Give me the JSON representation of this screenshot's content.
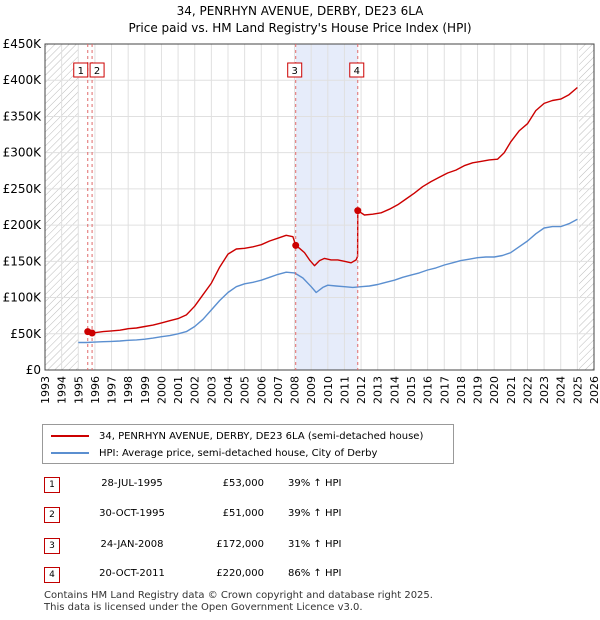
{
  "title_line1": "34, PENRHYN AVENUE, DERBY, DE23 6LA",
  "title_line2": "Price paid vs. HM Land Registry's House Price Index (HPI)",
  "colors": {
    "property": "#cc0000",
    "hpi": "#5b8fd0",
    "shade": "#e6ecfa",
    "marker_line": "#e06a6a",
    "grid": "#e0e0e0",
    "hatch": "#bbbbbb"
  },
  "chart_data": {
    "type": "line",
    "title": "Price paid vs. HM Land Registry's House Price Index (HPI)",
    "xlabel": "",
    "ylabel": "",
    "xlim": [
      1993,
      2026
    ],
    "ylim": [
      0,
      450000
    ],
    "y_ticks": [
      0,
      50000,
      100000,
      150000,
      200000,
      250000,
      300000,
      350000,
      400000,
      450000
    ],
    "y_tick_labels": [
      "£0",
      "£50K",
      "£100K",
      "£150K",
      "£200K",
      "£250K",
      "£300K",
      "£350K",
      "£400K",
      "£450K"
    ],
    "x_ticks": [
      1993,
      1994,
      1995,
      1996,
      1997,
      1998,
      1999,
      2000,
      2001,
      2002,
      2003,
      2004,
      2005,
      2006,
      2007,
      2008,
      2009,
      2010,
      2011,
      2012,
      2013,
      2014,
      2015,
      2016,
      2017,
      2018,
      2019,
      2020,
      2021,
      2022,
      2023,
      2024,
      2025,
      2026
    ],
    "x_tick_labels": [
      "1993",
      "1994",
      "1995",
      "1996",
      "1997",
      "1998",
      "1999",
      "2000",
      "2001",
      "2002",
      "2003",
      "2004",
      "2005",
      "2006",
      "2007",
      "2008",
      "2009",
      "2010",
      "2011",
      "2012",
      "2013",
      "2014",
      "2015",
      "2016",
      "2017",
      "2018",
      "2019",
      "2020",
      "2021",
      "2022",
      "2023",
      "2024",
      "2025",
      "2026"
    ],
    "hatched_ranges": [
      [
        1993,
        1995.0
      ],
      [
        2025.1,
        2026
      ]
    ],
    "shaded_range": [
      2008.07,
      2011.8
    ],
    "series": [
      {
        "name": "34, PENRHYN AVENUE, DERBY, DE23 6LA (semi-detached house)",
        "x": [
          1995.57,
          1995.83,
          1996.5,
          1997.0,
          1997.5,
          1998.0,
          1998.5,
          1999.0,
          1999.5,
          2000.0,
          2000.5,
          2001.0,
          2001.5,
          2002.0,
          2002.5,
          2003.0,
          2003.5,
          2004.0,
          2004.5,
          2005.0,
          2005.5,
          2006.0,
          2006.5,
          2007.0,
          2007.5,
          2007.9,
          2008.07,
          2008.3,
          2008.6,
          2008.9,
          2009.2,
          2009.5,
          2009.8,
          2010.2,
          2010.6,
          2011.0,
          2011.4,
          2011.7,
          2011.79,
          2011.8,
          2012.2,
          2012.7,
          2013.2,
          2013.7,
          2014.2,
          2014.7,
          2015.2,
          2015.7,
          2016.2,
          2016.7,
          2017.2,
          2017.7,
          2018.2,
          2018.7,
          2019.2,
          2019.7,
          2020.2,
          2020.6,
          2021.0,
          2021.5,
          2022.0,
          2022.5,
          2023.0,
          2023.5,
          2024.0,
          2024.5,
          2025.0
        ],
        "values": [
          53000,
          51000,
          53000,
          54000,
          55000,
          57000,
          58000,
          60000,
          62000,
          65000,
          68000,
          71000,
          76000,
          88000,
          104000,
          120000,
          142000,
          160000,
          167000,
          168000,
          170000,
          173000,
          178000,
          182000,
          186000,
          184000,
          172000,
          168000,
          162000,
          152000,
          144000,
          151000,
          154000,
          152000,
          152000,
          150000,
          148000,
          152000,
          157000,
          220000,
          214000,
          215000,
          217000,
          222000,
          228000,
          236000,
          244000,
          253000,
          260000,
          266000,
          272000,
          276000,
          282000,
          286000,
          288000,
          290000,
          291000,
          300000,
          315000,
          330000,
          340000,
          358000,
          368000,
          372000,
          374000,
          380000,
          390000
        ]
      },
      {
        "name": "HPI: Average price, semi-detached house, City of Derby",
        "x": [
          1995.0,
          1995.5,
          1996.0,
          1996.5,
          1997.0,
          1997.5,
          1998.0,
          1998.5,
          1999.0,
          1999.5,
          2000.0,
          2000.5,
          2001.0,
          2001.5,
          2002.0,
          2002.5,
          2003.0,
          2003.5,
          2004.0,
          2004.5,
          2005.0,
          2005.5,
          2006.0,
          2006.5,
          2007.0,
          2007.5,
          2008.0,
          2008.5,
          2009.0,
          2009.3,
          2009.7,
          2010.0,
          2010.5,
          2011.0,
          2011.5,
          2012.0,
          2012.5,
          2013.0,
          2013.5,
          2014.0,
          2014.5,
          2015.0,
          2015.5,
          2016.0,
          2016.5,
          2017.0,
          2017.5,
          2018.0,
          2018.5,
          2019.0,
          2019.5,
          2020.0,
          2020.5,
          2021.0,
          2021.5,
          2022.0,
          2022.5,
          2023.0,
          2023.5,
          2024.0,
          2024.5,
          2025.0
        ],
        "values": [
          38000,
          38000,
          38500,
          39000,
          39500,
          40000,
          41000,
          41500,
          42500,
          44000,
          46000,
          47500,
          50000,
          53000,
          60000,
          70000,
          83000,
          96000,
          107000,
          115000,
          119000,
          121000,
          124000,
          128000,
          132000,
          135000,
          134000,
          127000,
          115000,
          107000,
          114000,
          117000,
          116000,
          115000,
          114000,
          115000,
          116000,
          118000,
          121000,
          124000,
          128000,
          131000,
          134000,
          138000,
          141000,
          145000,
          148000,
          151000,
          153000,
          155000,
          156000,
          156000,
          158000,
          162000,
          170000,
          178000,
          188000,
          196000,
          198000,
          198000,
          202000,
          208000
        ]
      }
    ],
    "sale_points": [
      {
        "label": "1",
        "x": 1995.57,
        "value": 53000
      },
      {
        "label": "2",
        "x": 1995.83,
        "value": 51000
      },
      {
        "label": "3",
        "x": 2008.07,
        "value": 172000
      },
      {
        "label": "4",
        "x": 2011.8,
        "value": 220000
      }
    ]
  },
  "legend": {
    "property_label": "34, PENRHYN AVENUE, DERBY, DE23 6LA (semi-detached house)",
    "hpi_label": "HPI: Average price, semi-detached house, City of Derby"
  },
  "transactions": [
    {
      "num": "1",
      "date": "28-JUL-1995",
      "price": "£53,000",
      "hpi": "39% ↑ HPI"
    },
    {
      "num": "2",
      "date": "30-OCT-1995",
      "price": "£51,000",
      "hpi": "39% ↑ HPI"
    },
    {
      "num": "3",
      "date": "24-JAN-2008",
      "price": "£172,000",
      "hpi": "31% ↑ HPI"
    },
    {
      "num": "4",
      "date": "20-OCT-2011",
      "price": "£220,000",
      "hpi": "86% ↑ HPI"
    }
  ],
  "footer": {
    "line1": "Contains HM Land Registry data © Crown copyright and database right 2025.",
    "line2": "This data is licensed under the Open Government Licence v3.0."
  }
}
